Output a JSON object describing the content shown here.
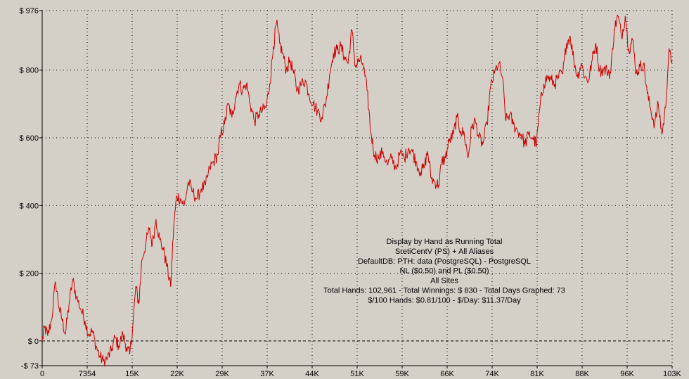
{
  "chart_data": {
    "type": "line",
    "title_lines": [
      "Display by Hand as Running Total",
      "SretiCentV (PS) + All Aliases",
      "DefaultDB: PTH: data (PostgreSQL) - PostgreSQL",
      "NL ($0.50) and PL ($0.50)",
      "All Sites",
      "Total Hands: 102,961 - Total Winnings: $ 830 - Total Days Graphed: 73",
      "$/100 Hands: $0.81/100 - $/Day: $11.37/Day"
    ],
    "xlim": [
      0,
      102961
    ],
    "ylim": [
      -73,
      976
    ],
    "y_ticks": [
      {
        "value": 976,
        "label": "$ 976"
      },
      {
        "value": 800,
        "label": "$ 800"
      },
      {
        "value": 600,
        "label": "$ 600"
      },
      {
        "value": 400,
        "label": "$ 400"
      },
      {
        "value": 200,
        "label": "$ 200"
      },
      {
        "value": 0,
        "label": "$ 0"
      },
      {
        "value": -73,
        "label": "-$ 73"
      }
    ],
    "x_ticks": [
      {
        "value": 0,
        "label": "0"
      },
      {
        "value": 7354,
        "label": "7354"
      },
      {
        "value": 14709,
        "label": "15K"
      },
      {
        "value": 22063,
        "label": "22K"
      },
      {
        "value": 29417,
        "label": "29K"
      },
      {
        "value": 36772,
        "label": "37K"
      },
      {
        "value": 44126,
        "label": "44K"
      },
      {
        "value": 51480,
        "label": "51K"
      },
      {
        "value": 58835,
        "label": "59K"
      },
      {
        "value": 66189,
        "label": "66K"
      },
      {
        "value": 73543,
        "label": "74K"
      },
      {
        "value": 80898,
        "label": "81K"
      },
      {
        "value": 88252,
        "label": "88K"
      },
      {
        "value": 95606,
        "label": "96K"
      },
      {
        "value": 102961,
        "label": "103K"
      }
    ],
    "grid": true,
    "zero_line": true,
    "colors": {
      "line": "#cc0000",
      "background": "#d4d0c8",
      "grid": "#000000"
    },
    "series": [
      {
        "points": [
          [
            0,
            0
          ],
          [
            400,
            40
          ],
          [
            900,
            15
          ],
          [
            1500,
            60
          ],
          [
            2200,
            175
          ],
          [
            2800,
            95
          ],
          [
            3300,
            60
          ],
          [
            3800,
            20
          ],
          [
            4400,
            110
          ],
          [
            5000,
            180
          ],
          [
            5600,
            130
          ],
          [
            6300,
            95
          ],
          [
            7000,
            60
          ],
          [
            7600,
            20
          ],
          [
            8200,
            30
          ],
          [
            8800,
            -15
          ],
          [
            9400,
            -45
          ],
          [
            10000,
            -60
          ],
          [
            10700,
            -50
          ],
          [
            11300,
            -30
          ],
          [
            11900,
            10
          ],
          [
            12500,
            -15
          ],
          [
            13200,
            20
          ],
          [
            13800,
            -20
          ],
          [
            14300,
            -40
          ],
          [
            14800,
            40
          ],
          [
            15300,
            160
          ],
          [
            15800,
            110
          ],
          [
            16300,
            240
          ],
          [
            16900,
            285
          ],
          [
            17500,
            330
          ],
          [
            18000,
            285
          ],
          [
            18600,
            360
          ],
          [
            19200,
            300
          ],
          [
            19800,
            270
          ],
          [
            20400,
            220
          ],
          [
            21000,
            160
          ],
          [
            21500,
            340
          ],
          [
            22000,
            430
          ],
          [
            22600,
            420
          ],
          [
            23200,
            400
          ],
          [
            23900,
            470
          ],
          [
            24600,
            440
          ],
          [
            25300,
            420
          ],
          [
            26000,
            450
          ],
          [
            26700,
            460
          ],
          [
            27400,
            510
          ],
          [
            28000,
            530
          ],
          [
            28700,
            550
          ],
          [
            29200,
            610
          ],
          [
            29800,
            640
          ],
          [
            30400,
            700
          ],
          [
            31000,
            660
          ],
          [
            31600,
            720
          ],
          [
            32200,
            760
          ],
          [
            32800,
            740
          ],
          [
            33400,
            760
          ],
          [
            34000,
            700
          ],
          [
            34700,
            650
          ],
          [
            35400,
            670
          ],
          [
            36000,
            680
          ],
          [
            36600,
            690
          ],
          [
            37200,
            760
          ],
          [
            37800,
            870
          ],
          [
            38300,
            940
          ],
          [
            38800,
            880
          ],
          [
            39300,
            850
          ],
          [
            39900,
            800
          ],
          [
            40500,
            830
          ],
          [
            41100,
            790
          ],
          [
            41700,
            740
          ],
          [
            42400,
            760
          ],
          [
            43000,
            770
          ],
          [
            43600,
            730
          ],
          [
            44300,
            700
          ],
          [
            45000,
            680
          ],
          [
            45700,
            660
          ],
          [
            46400,
            710
          ],
          [
            47000,
            790
          ],
          [
            47600,
            850
          ],
          [
            48200,
            860
          ],
          [
            48800,
            870
          ],
          [
            49400,
            840
          ],
          [
            50000,
            820
          ],
          [
            50600,
            920
          ],
          [
            51200,
            810
          ],
          [
            51800,
            830
          ],
          [
            52400,
            820
          ],
          [
            53100,
            740
          ],
          [
            53700,
            620
          ],
          [
            54300,
            550
          ],
          [
            55000,
            540
          ],
          [
            55700,
            560
          ],
          [
            56400,
            520
          ],
          [
            57100,
            540
          ],
          [
            57800,
            510
          ],
          [
            58500,
            555
          ],
          [
            59200,
            540
          ],
          [
            59900,
            570
          ],
          [
            60500,
            560
          ],
          [
            61100,
            530
          ],
          [
            61800,
            500
          ],
          [
            62400,
            510
          ],
          [
            63000,
            560
          ],
          [
            63600,
            480
          ],
          [
            64200,
            470
          ],
          [
            64800,
            460
          ],
          [
            65300,
            530
          ],
          [
            65900,
            540
          ],
          [
            66500,
            590
          ],
          [
            67200,
            610
          ],
          [
            67800,
            660
          ],
          [
            68400,
            620
          ],
          [
            69000,
            610
          ],
          [
            69600,
            540
          ],
          [
            70200,
            630
          ],
          [
            70800,
            650
          ],
          [
            71400,
            600
          ],
          [
            72000,
            580
          ],
          [
            72700,
            640
          ],
          [
            73300,
            750
          ],
          [
            73900,
            790
          ],
          [
            74600,
            820
          ],
          [
            75200,
            780
          ],
          [
            75800,
            650
          ],
          [
            76400,
            670
          ],
          [
            77000,
            640
          ],
          [
            77700,
            620
          ],
          [
            78300,
            610
          ],
          [
            78900,
            580
          ],
          [
            79500,
            610
          ],
          [
            80200,
            600
          ],
          [
            80800,
            580
          ],
          [
            81400,
            700
          ],
          [
            82000,
            760
          ],
          [
            82600,
            780
          ],
          [
            83200,
            770
          ],
          [
            83800,
            760
          ],
          [
            84400,
            780
          ],
          [
            85100,
            790
          ],
          [
            85700,
            880
          ],
          [
            86300,
            900
          ],
          [
            86900,
            830
          ],
          [
            87500,
            780
          ],
          [
            88100,
            820
          ],
          [
            88700,
            780
          ],
          [
            89300,
            770
          ],
          [
            89900,
            830
          ],
          [
            90500,
            880
          ],
          [
            91100,
            800
          ],
          [
            91700,
            800
          ],
          [
            92300,
            800
          ],
          [
            92900,
            790
          ],
          [
            93500,
            920
          ],
          [
            94100,
            960
          ],
          [
            94700,
            900
          ],
          [
            95300,
            960
          ],
          [
            95900,
            860
          ],
          [
            96500,
            890
          ],
          [
            97100,
            790
          ],
          [
            97700,
            810
          ],
          [
            98300,
            820
          ],
          [
            98900,
            730
          ],
          [
            99500,
            680
          ],
          [
            100100,
            640
          ],
          [
            100700,
            700
          ],
          [
            101300,
            610
          ],
          [
            101900,
            690
          ],
          [
            102400,
            850
          ],
          [
            102961,
            830
          ]
        ]
      }
    ]
  }
}
